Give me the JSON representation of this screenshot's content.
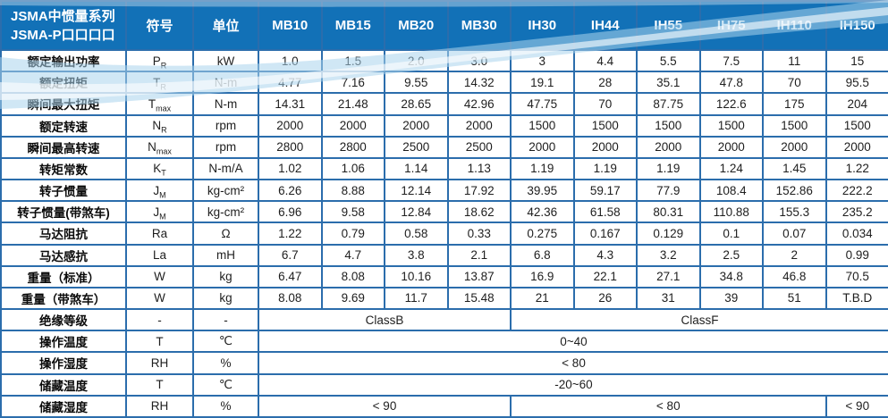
{
  "colors": {
    "header_bg": "#1271b7",
    "border": "#2b6dac",
    "header_text": "#ffffff",
    "body_text": "#1e1e1e",
    "wave_light": "#a9d4ec"
  },
  "table": {
    "title_line1": "JSMA中惯量系列",
    "title_line2": "JSMA-P口口口口",
    "symbol_header": "符号",
    "unit_header": "单位",
    "models": [
      "MB10",
      "MB15",
      "MB20",
      "MB30",
      "IH30",
      "IH44",
      "IH55",
      "IH75",
      "IH110",
      "IH150"
    ],
    "rows": [
      {
        "label": "额定输出功率",
        "sym": "P",
        "sub": "R",
        "unit": "kW",
        "values": [
          "1.0",
          "1.5",
          "2.0",
          "3.0",
          "3",
          "4.4",
          "5.5",
          "7.5",
          "11",
          "15"
        ]
      },
      {
        "label": "额定扭矩",
        "sym": "T",
        "sub": "R",
        "unit": "N-m",
        "values": [
          "4.77",
          "7.16",
          "9.55",
          "14.32",
          "19.1",
          "28",
          "35.1",
          "47.8",
          "70",
          "95.5"
        ]
      },
      {
        "label": "瞬间最大扭矩",
        "sym": "T",
        "sub": "max",
        "unit": "N-m",
        "values": [
          "14.31",
          "21.48",
          "28.65",
          "42.96",
          "47.75",
          "70",
          "87.75",
          "122.6",
          "175",
          "204"
        ]
      },
      {
        "label": "额定转速",
        "sym": "N",
        "sub": "R",
        "unit": "rpm",
        "values": [
          "2000",
          "2000",
          "2000",
          "2000",
          "1500",
          "1500",
          "1500",
          "1500",
          "1500",
          "1500"
        ]
      },
      {
        "label": "瞬间最高转速",
        "sym": "N",
        "sub": "max",
        "unit": "rpm",
        "values": [
          "2800",
          "2800",
          "2500",
          "2500",
          "2000",
          "2000",
          "2000",
          "2000",
          "2000",
          "2000"
        ]
      },
      {
        "label": "转矩常数",
        "sym": "K",
        "sub": "T",
        "unit": "N-m/A",
        "values": [
          "1.02",
          "1.06",
          "1.14",
          "1.13",
          "1.19",
          "1.19",
          "1.19",
          "1.24",
          "1.45",
          "1.22"
        ]
      },
      {
        "label": "转子惯量",
        "sym": "J",
        "sub": "M",
        "unit": "kg-cm²",
        "values": [
          "6.26",
          "8.88",
          "12.14",
          "17.92",
          "39.95",
          "59.17",
          "77.9",
          "108.4",
          "152.86",
          "222.2"
        ]
      },
      {
        "label": "转子惯量(带煞车)",
        "sym": "J",
        "sub": "M",
        "unit": "kg-cm²",
        "values": [
          "6.96",
          "9.58",
          "12.84",
          "18.62",
          "42.36",
          "61.58",
          "80.31",
          "110.88",
          "155.3",
          "235.2"
        ]
      },
      {
        "label": "马达阻抗",
        "sym": "Ra",
        "unit": "Ω",
        "values": [
          "1.22",
          "0.79",
          "0.58",
          "0.33",
          "0.275",
          "0.167",
          "0.129",
          "0.1",
          "0.07",
          "0.034"
        ]
      },
      {
        "label": "马达感抗",
        "sym": "La",
        "unit": "mH",
        "values": [
          "6.7",
          "4.7",
          "3.8",
          "2.1",
          "6.8",
          "4.3",
          "3.2",
          "2.5",
          "2",
          "0.99"
        ]
      },
      {
        "label": "重量（标准）",
        "sym": "W",
        "unit": "kg",
        "values": [
          "6.47",
          "8.08",
          "10.16",
          "13.87",
          "16.9",
          "22.1",
          "27.1",
          "34.8",
          "46.8",
          "70.5"
        ]
      },
      {
        "label": "重量（带煞车）",
        "sym": "W",
        "unit": "kg",
        "values": [
          "8.08",
          "9.69",
          "11.7",
          "15.48",
          "21",
          "26",
          "31",
          "39",
          "51",
          "T.B.D"
        ]
      },
      {
        "label": "绝缘等级",
        "sym": "-",
        "unit": "-",
        "spans": [
          {
            "text": "ClassB",
            "cols": 4
          },
          {
            "text": "ClassF",
            "cols": 6
          }
        ]
      },
      {
        "label": "操作温度",
        "sym": "T",
        "unit": "℃",
        "spans": [
          {
            "text": "0~40",
            "cols": 10
          }
        ]
      },
      {
        "label": "操作湿度",
        "sym": "RH",
        "unit": "%",
        "spans": [
          {
            "text": "< 80",
            "cols": 10
          }
        ]
      },
      {
        "label": "储藏温度",
        "sym": "T",
        "unit": "℃",
        "spans": [
          {
            "text": "-20~60",
            "cols": 10
          }
        ]
      },
      {
        "label": "储藏湿度",
        "sym": "RH",
        "unit": "%",
        "spans": [
          {
            "text": "< 90",
            "cols": 4
          },
          {
            "text": "< 80",
            "cols": 5
          },
          {
            "text": "< 90",
            "cols": 1
          }
        ]
      }
    ]
  }
}
